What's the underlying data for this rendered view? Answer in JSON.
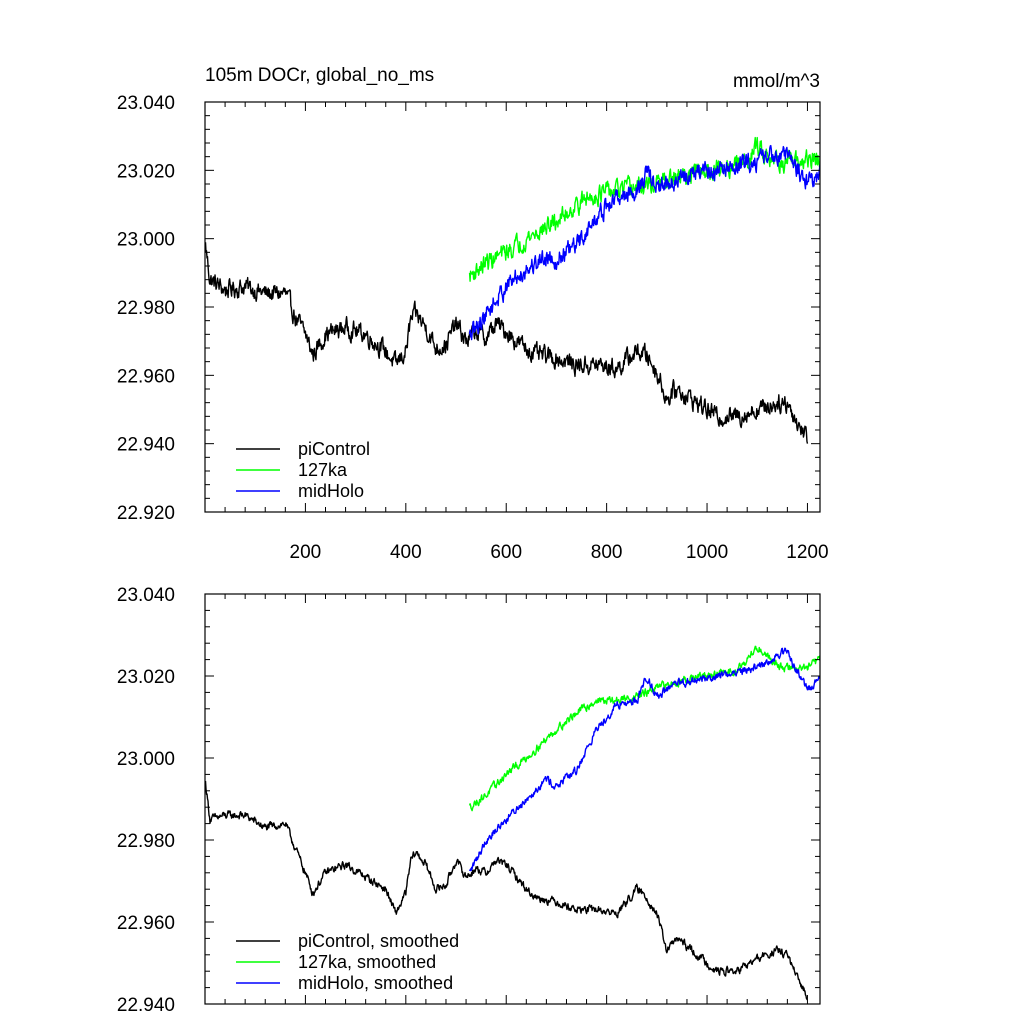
{
  "chart_data": [
    {
      "type": "line",
      "title": "105m DOCr, global_no_ms",
      "units": "mmol/m^3",
      "xlim": [
        0,
        1225
      ],
      "ylim": [
        22.92,
        23.04
      ],
      "xticks": [
        200,
        400,
        600,
        800,
        1000,
        1200
      ],
      "xtick_labels": [
        "200",
        "400",
        "600",
        "800",
        "1000",
        "1200"
      ],
      "yticks": [
        22.92,
        22.94,
        22.96,
        22.98,
        23.0,
        23.02,
        23.04
      ],
      "ytick_labels": [
        "22.920",
        "22.940",
        "22.960",
        "22.980",
        "23.000",
        "23.020",
        "23.040"
      ],
      "legend_position": "bottom-left",
      "series": [
        {
          "name": "piControl",
          "color": "#000000",
          "noise": 0.0022,
          "x": [
            1,
            10,
            40,
            80,
            120,
            160,
            180,
            200,
            215,
            240,
            280,
            320,
            360,
            380,
            400,
            410,
            420,
            440,
            460,
            480,
            500,
            520,
            540,
            560,
            580,
            600,
            620,
            640,
            660,
            700,
            740,
            780,
            820,
            860,
            880,
            900,
            920,
            940,
            960,
            990,
            1020,
            1060,
            1100,
            1140,
            1160,
            1180,
            1200
          ],
          "y": [
            22.998,
            22.988,
            22.985,
            22.986,
            22.984,
            22.984,
            22.977,
            22.972,
            22.966,
            22.972,
            22.974,
            22.972,
            22.967,
            22.963,
            22.967,
            22.976,
            22.978,
            22.974,
            22.968,
            22.969,
            22.975,
            22.97,
            22.973,
            22.971,
            22.975,
            22.973,
            22.97,
            22.968,
            22.966,
            22.965,
            22.963,
            22.963,
            22.962,
            22.967,
            22.966,
            22.961,
            22.953,
            22.956,
            22.954,
            22.951,
            22.948,
            22.948,
            22.95,
            22.952,
            22.952,
            22.946,
            22.942
          ]
        },
        {
          "name": "127ka",
          "color": "#00ff00",
          "noise": 0.0022,
          "x": [
            527,
            560,
            600,
            640,
            700,
            740,
            780,
            820,
            860,
            900,
            950,
            1000,
            1050,
            1080,
            1100,
            1130,
            1150,
            1170,
            1200,
            1225
          ],
          "y": [
            22.989,
            22.993,
            22.996,
            23.0,
            23.005,
            23.01,
            23.013,
            23.014,
            23.015,
            23.016,
            23.018,
            23.02,
            23.021,
            23.023,
            23.027,
            23.024,
            23.022,
            23.022,
            23.023,
            23.023
          ]
        },
        {
          "name": "midHolo",
          "color": "#0000ff",
          "noise": 0.0022,
          "x": [
            527,
            560,
            600,
            640,
            680,
            700,
            740,
            780,
            820,
            860,
            880,
            900,
            940,
            980,
            1020,
            1060,
            1100,
            1140,
            1160,
            1180,
            1200,
            1225
          ],
          "y": [
            22.971,
            22.978,
            22.986,
            22.991,
            22.995,
            22.994,
            22.998,
            23.006,
            23.012,
            23.014,
            23.019,
            23.015,
            23.017,
            23.019,
            23.02,
            23.021,
            23.023,
            23.025,
            23.025,
            23.02,
            23.017,
            23.019
          ]
        }
      ]
    },
    {
      "type": "line",
      "title": "",
      "xlim": [
        0,
        1225
      ],
      "ylim": [
        22.94,
        23.04
      ],
      "yticks": [
        22.94,
        22.96,
        22.98,
        23.0,
        23.02,
        23.04
      ],
      "ytick_labels": [
        "22.940",
        "22.960",
        "22.980",
        "23.000",
        "23.020",
        "23.040"
      ],
      "legend_position": "bottom-left",
      "series": [
        {
          "name": "piControl, smoothed",
          "color": "#000000",
          "noise": 0.0008,
          "x": [
            1,
            10,
            40,
            80,
            120,
            160,
            180,
            200,
            215,
            240,
            280,
            320,
            360,
            380,
            400,
            410,
            420,
            440,
            460,
            480,
            500,
            520,
            540,
            560,
            580,
            600,
            620,
            640,
            660,
            700,
            740,
            780,
            820,
            860,
            880,
            900,
            920,
            940,
            960,
            990,
            1020,
            1060,
            1100,
            1140,
            1160,
            1180,
            1200
          ],
          "y": [
            22.994,
            22.985,
            22.986,
            22.986,
            22.983,
            22.984,
            22.978,
            22.972,
            22.967,
            22.972,
            22.974,
            22.971,
            22.968,
            22.962,
            22.967,
            22.975,
            22.977,
            22.974,
            22.968,
            22.969,
            22.975,
            22.971,
            22.973,
            22.972,
            22.975,
            22.974,
            22.971,
            22.968,
            22.966,
            22.965,
            22.963,
            22.963,
            22.962,
            22.968,
            22.966,
            22.962,
            22.953,
            22.956,
            22.954,
            22.951,
            22.948,
            22.948,
            22.951,
            22.953,
            22.952,
            22.946,
            22.942
          ]
        },
        {
          "name": "127ka, smoothed",
          "color": "#00ff00",
          "noise": 0.0008,
          "x": [
            527,
            560,
            600,
            640,
            700,
            740,
            780,
            820,
            860,
            900,
            950,
            1000,
            1050,
            1080,
            1100,
            1130,
            1150,
            1170,
            1200,
            1225
          ],
          "y": [
            22.988,
            22.991,
            22.996,
            23.0,
            23.007,
            23.011,
            23.014,
            23.014,
            23.015,
            23.017,
            23.019,
            23.02,
            23.021,
            23.024,
            23.027,
            23.024,
            23.022,
            23.022,
            23.022,
            23.024
          ]
        },
        {
          "name": "midHolo, smoothed",
          "color": "#0000ff",
          "noise": 0.0008,
          "x": [
            527,
            560,
            600,
            640,
            680,
            700,
            740,
            780,
            820,
            860,
            880,
            900,
            940,
            980,
            1020,
            1060,
            1100,
            1140,
            1160,
            1180,
            1200,
            1225
          ],
          "y": [
            22.972,
            22.98,
            22.985,
            22.99,
            22.995,
            22.993,
            22.997,
            23.007,
            23.013,
            23.014,
            23.02,
            23.015,
            23.018,
            23.019,
            23.02,
            23.021,
            23.022,
            23.025,
            23.026,
            23.021,
            23.017,
            23.019
          ]
        }
      ]
    }
  ]
}
